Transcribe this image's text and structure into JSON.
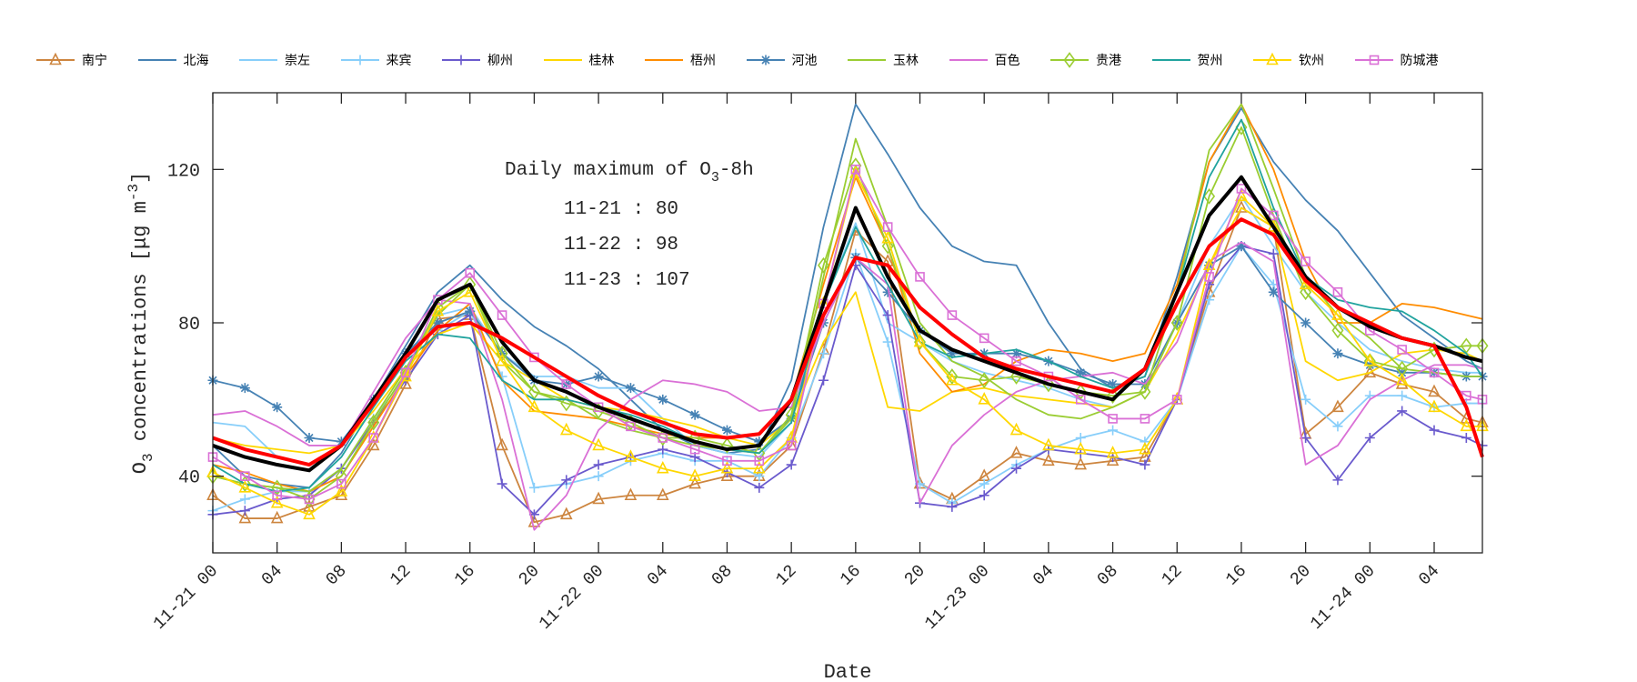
{
  "chart_data": {
    "type": "line",
    "xlabel": "Date",
    "ylabel": "O3 concentrations [μg m-3]",
    "ylim": [
      20,
      140
    ],
    "xlim_hours": [
      0,
      79
    ],
    "yticks": [
      40,
      80,
      120
    ],
    "xtick_labels": [
      "11-21 00",
      "04",
      "08",
      "12",
      "16",
      "20",
      "11-22 00",
      "04",
      "08",
      "12",
      "16",
      "20",
      "11-23 00",
      "04",
      "08",
      "12",
      "16",
      "20",
      "11-24 00",
      "04"
    ],
    "grid": false,
    "legend_position": "top",
    "annotation": {
      "title": "Daily maximum of O3-8h",
      "lines": [
        "11-21 : 80",
        "11-22 : 98",
        "11-23 : 107"
      ]
    },
    "x": [
      0,
      2,
      4,
      6,
      8,
      10,
      12,
      14,
      16,
      18,
      20,
      22,
      24,
      26,
      28,
      30,
      32,
      34,
      36,
      38,
      40,
      42,
      44,
      46,
      48,
      50,
      52,
      54,
      56,
      58,
      60,
      62,
      64,
      66,
      68,
      70,
      72,
      74,
      76,
      78,
      79
    ],
    "series": [
      {
        "name": "南宁",
        "color": "#cd853f",
        "marker": "triangle",
        "values": [
          35,
          29,
          29,
          32,
          35,
          48,
          64,
          81,
          82,
          48,
          28,
          30,
          34,
          35,
          35,
          38,
          40,
          40,
          48,
          73,
          104,
          96,
          38,
          34,
          40,
          46,
          44,
          43,
          44,
          45,
          60,
          88,
          110,
          105,
          51,
          58,
          67,
          64,
          62,
          55,
          54
        ]
      },
      {
        "name": "北海",
        "color": "#4682b4",
        "marker": "none",
        "values": [
          48,
          40,
          38,
          37,
          46,
          60,
          74,
          88,
          95,
          86,
          79,
          74,
          68,
          60,
          52,
          48,
          46,
          47,
          65,
          105,
          137,
          124,
          110,
          100,
          96,
          95,
          80,
          68,
          63,
          66,
          92,
          122,
          136,
          122,
          112,
          104,
          93,
          82,
          76,
          70,
          68
        ]
      },
      {
        "name": "崇左",
        "color": "#87cefa",
        "marker": "none",
        "values": [
          54,
          53,
          45,
          43,
          48,
          60,
          71,
          82,
          84,
          72,
          66,
          66,
          63,
          63,
          55,
          48,
          46,
          45,
          54,
          85,
          106,
          80,
          75,
          70,
          67,
          65,
          63,
          60,
          58,
          62,
          80,
          100,
          113,
          100,
          88,
          80,
          73,
          70,
          68,
          67,
          67
        ]
      },
      {
        "name": "来宾",
        "color": "#87cefa",
        "marker": "plus",
        "values": [
          31,
          34,
          36,
          36,
          42,
          55,
          66,
          78,
          83,
          66,
          37,
          38,
          40,
          44,
          46,
          44,
          44,
          40,
          50,
          72,
          98,
          75,
          38,
          33,
          38,
          43,
          47,
          50,
          52,
          49,
          60,
          86,
          100,
          90,
          60,
          53,
          61,
          61,
          58,
          59,
          59
        ]
      },
      {
        "name": "柳州",
        "color": "#6a5acd",
        "marker": "plus",
        "values": [
          30,
          31,
          34,
          35,
          42,
          54,
          65,
          77,
          82,
          38,
          30,
          39,
          43,
          45,
          47,
          45,
          41,
          37,
          43,
          65,
          95,
          82,
          33,
          32,
          35,
          42,
          47,
          46,
          45,
          43,
          60,
          90,
          100,
          98,
          50,
          39,
          50,
          57,
          52,
          50,
          48
        ]
      },
      {
        "name": "桂林",
        "color": "#ffd700",
        "marker": "none",
        "values": [
          50,
          48,
          47,
          46,
          48,
          57,
          68,
          77,
          80,
          70,
          65,
          60,
          58,
          57,
          55,
          53,
          50,
          48,
          55,
          75,
          88,
          58,
          57,
          62,
          63,
          61,
          60,
          59,
          58,
          62,
          77,
          95,
          110,
          105,
          70,
          65,
          67,
          72,
          73,
          72,
          70
        ]
      },
      {
        "name": "梧州",
        "color": "#ff8c00",
        "marker": "none",
        "values": [
          43,
          41,
          38,
          36,
          40,
          53,
          66,
          78,
          85,
          65,
          57,
          56,
          55,
          53,
          51,
          50,
          50,
          51,
          60,
          90,
          118,
          100,
          72,
          62,
          64,
          70,
          73,
          72,
          70,
          72,
          90,
          122,
          137,
          120,
          96,
          80,
          80,
          85,
          84,
          82,
          81
        ]
      },
      {
        "name": "河池",
        "color": "#4682b4",
        "marker": "asterisk",
        "values": [
          65,
          63,
          58,
          50,
          49,
          60,
          72,
          80,
          83,
          72,
          65,
          64,
          66,
          63,
          60,
          56,
          52,
          49,
          55,
          80,
          97,
          88,
          78,
          72,
          72,
          72,
          70,
          67,
          64,
          64,
          80,
          95,
          100,
          88,
          80,
          72,
          69,
          67,
          67,
          66,
          66
        ]
      },
      {
        "name": "玉林",
        "color": "#9acd32",
        "marker": "none",
        "values": [
          40,
          38,
          37,
          36,
          42,
          55,
          68,
          82,
          90,
          70,
          62,
          60,
          55,
          52,
          50,
          48,
          47,
          46,
          55,
          92,
          128,
          105,
          80,
          70,
          66,
          60,
          56,
          55,
          58,
          62,
          88,
          125,
          137,
          115,
          92,
          82,
          76,
          68,
          67,
          66,
          66
        ]
      },
      {
        "name": "百色",
        "color": "#da70d6",
        "marker": "none",
        "values": [
          56,
          57,
          53,
          48,
          48,
          62,
          76,
          86,
          85,
          60,
          26,
          35,
          52,
          60,
          65,
          64,
          62,
          57,
          58,
          80,
          97,
          90,
          33,
          48,
          56,
          62,
          65,
          66,
          67,
          64,
          75,
          96,
          101,
          96,
          43,
          48,
          60,
          65,
          69,
          69,
          68
        ]
      },
      {
        "name": "贵港",
        "color": "#9acd32",
        "marker": "diamond",
        "values": [
          40,
          38,
          37,
          34,
          40,
          54,
          67,
          84,
          90,
          72,
          62,
          59,
          57,
          54,
          50,
          50,
          48,
          46,
          56,
          95,
          121,
          100,
          75,
          66,
          65,
          66,
          64,
          62,
          61,
          62,
          80,
          113,
          131,
          108,
          88,
          78,
          70,
          68,
          73,
          74,
          74
        ]
      },
      {
        "name": "贺州",
        "color": "#20a39e",
        "marker": "none",
        "values": [
          43,
          38,
          36,
          37,
          45,
          58,
          70,
          77,
          76,
          65,
          60,
          60,
          58,
          56,
          53,
          49,
          47,
          46,
          54,
          85,
          105,
          90,
          75,
          71,
          72,
          73,
          70,
          66,
          63,
          66,
          88,
          118,
          133,
          110,
          92,
          86,
          84,
          83,
          78,
          72,
          66
        ]
      },
      {
        "name": "钦州",
        "color": "#ffd700",
        "marker": "triangle",
        "values": [
          41,
          37,
          33,
          30,
          36,
          50,
          66,
          83,
          88,
          70,
          58,
          52,
          48,
          45,
          42,
          40,
          42,
          42,
          50,
          85,
          119,
          102,
          75,
          65,
          60,
          52,
          48,
          47,
          46,
          47,
          60,
          95,
          113,
          105,
          90,
          82,
          70,
          65,
          58,
          53,
          53
        ]
      },
      {
        "name": "防城港",
        "color": "#da70d6",
        "marker": "square",
        "values": [
          45,
          40,
          35,
          34,
          38,
          50,
          67,
          86,
          93,
          82,
          71,
          64,
          58,
          53,
          50,
          47,
          44,
          44,
          48,
          85,
          120,
          105,
          92,
          82,
          76,
          70,
          66,
          60,
          55,
          55,
          60,
          92,
          115,
          108,
          96,
          88,
          78,
          73,
          67,
          61,
          60
        ]
      },
      {
        "color": "#000000",
        "marker": "none",
        "emphasis": true,
        "values": [
          48,
          45,
          43,
          41.5,
          48,
          60,
          72,
          86,
          90,
          75,
          65,
          62,
          58,
          55,
          52,
          49,
          47,
          48,
          60,
          85,
          110,
          92,
          78,
          73,
          70,
          67,
          64,
          62,
          60,
          68,
          88,
          108,
          118,
          105,
          92,
          84,
          79,
          76,
          74,
          71,
          70
        ]
      },
      {
        "color": "#ff0000",
        "marker": "none",
        "emphasis": true,
        "values": [
          50,
          47,
          45,
          43,
          48,
          59,
          71,
          79,
          80,
          76,
          71,
          66,
          61,
          57,
          54,
          51,
          50,
          51,
          60,
          82,
          97,
          95,
          84,
          77,
          71,
          68,
          66,
          64,
          62,
          68,
          85,
          100,
          107,
          103,
          91,
          84,
          80,
          76,
          74,
          58,
          45
        ]
      }
    ]
  }
}
